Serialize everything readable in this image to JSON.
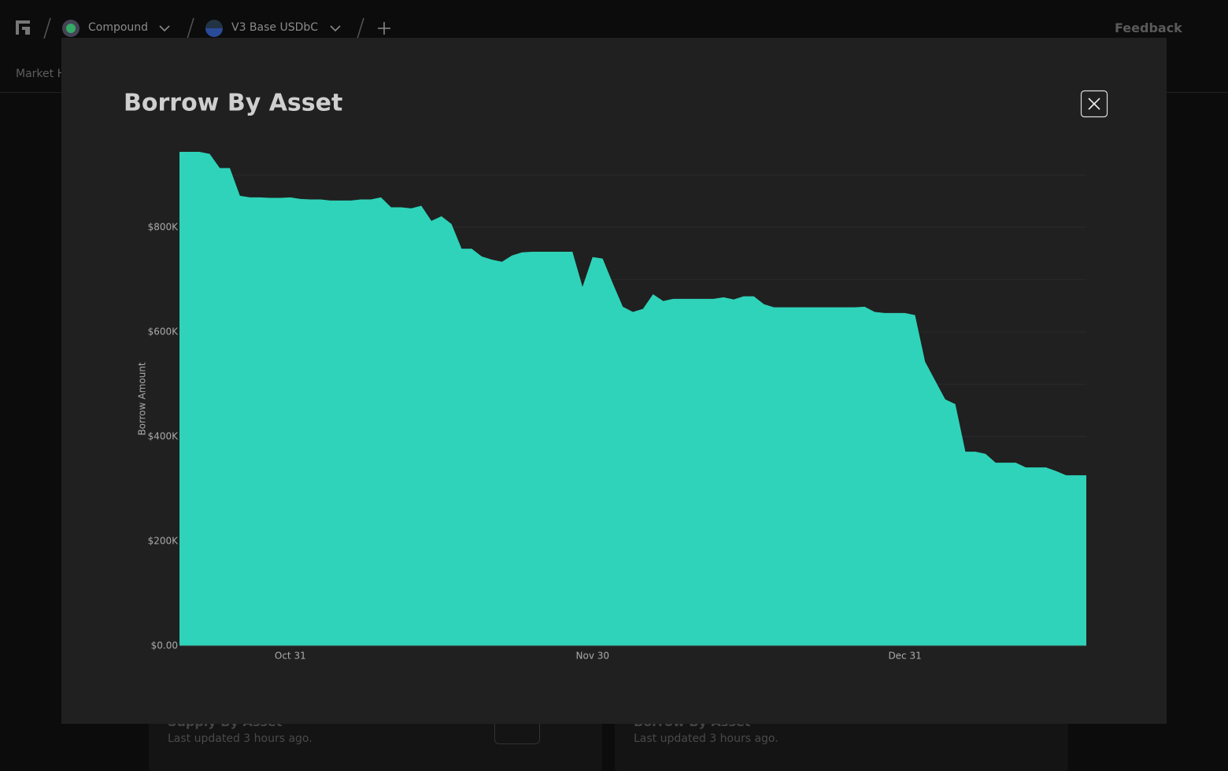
{
  "nav": {
    "items": [
      "Compound",
      "V3 Base USDbC"
    ],
    "feedback": "Feedback",
    "tab": "Market H"
  },
  "cards": [
    {
      "title": "Supply By Asset",
      "updated": "Last updated 3 hours ago."
    },
    {
      "title": "Borrow By Asset",
      "updated": "Last updated 3 hours ago."
    }
  ],
  "chart_data": {
    "type": "area",
    "title": "Borrow By Asset",
    "y_label": "Borrow Amount",
    "color": "#2fd3b9",
    "categories": [
      null,
      null,
      null,
      null,
      null,
      null,
      null,
      null,
      null,
      null,
      null,
      "Oct 31",
      null,
      null,
      null,
      null,
      null,
      null,
      null,
      null,
      null,
      null,
      null,
      null,
      null,
      null,
      null,
      null,
      null,
      null,
      null,
      null,
      null,
      null,
      null,
      null,
      null,
      null,
      null,
      null,
      null,
      "Nov 30",
      null,
      null,
      null,
      null,
      null,
      null,
      null,
      null,
      null,
      null,
      null,
      null,
      null,
      null,
      null,
      null,
      null,
      null,
      null,
      null,
      null,
      null,
      null,
      null,
      null,
      null,
      null,
      null,
      null,
      null,
      "Dec 31",
      null,
      null,
      null,
      null,
      null,
      null,
      null,
      null,
      null,
      null,
      null,
      null,
      null,
      null,
      null,
      null,
      null,
      null
    ],
    "values": [
      944000,
      944000,
      944000,
      940000,
      913000,
      913000,
      860000,
      857000,
      857000,
      856000,
      856000,
      857000,
      854000,
      853000,
      853000,
      851000,
      851000,
      851000,
      853000,
      853000,
      857000,
      838000,
      838000,
      836000,
      841000,
      812000,
      821000,
      806000,
      759000,
      759000,
      744000,
      738000,
      734000,
      746000,
      752000,
      753000,
      753000,
      753000,
      753000,
      753000,
      686000,
      743000,
      740000,
      693000,
      648000,
      638000,
      644000,
      672000,
      659000,
      663000,
      663000,
      663000,
      663000,
      663000,
      666000,
      662000,
      668000,
      668000,
      653000,
      647000,
      647000,
      647000,
      647000,
      647000,
      647000,
      647000,
      647000,
      647000,
      648000,
      638000,
      636000,
      636000,
      636000,
      632000,
      543000,
      507000,
      471000,
      462000,
      371000,
      371000,
      367000,
      350000,
      350000,
      350000,
      341000,
      341000,
      341000,
      334000,
      326000,
      326000,
      326000
    ],
    "ylim": [
      0,
      950000
    ],
    "yticks": [
      {
        "value": 0,
        "label": "$0.00"
      },
      {
        "value": 200000,
        "label": "$200K"
      },
      {
        "value": 400000,
        "label": "$400K"
      },
      {
        "value": 600000,
        "label": "$600K"
      },
      {
        "value": 800000,
        "label": "$800K"
      }
    ],
    "minor_grid": [
      100000,
      300000,
      500000,
      700000,
      900000
    ],
    "grid": true
  }
}
